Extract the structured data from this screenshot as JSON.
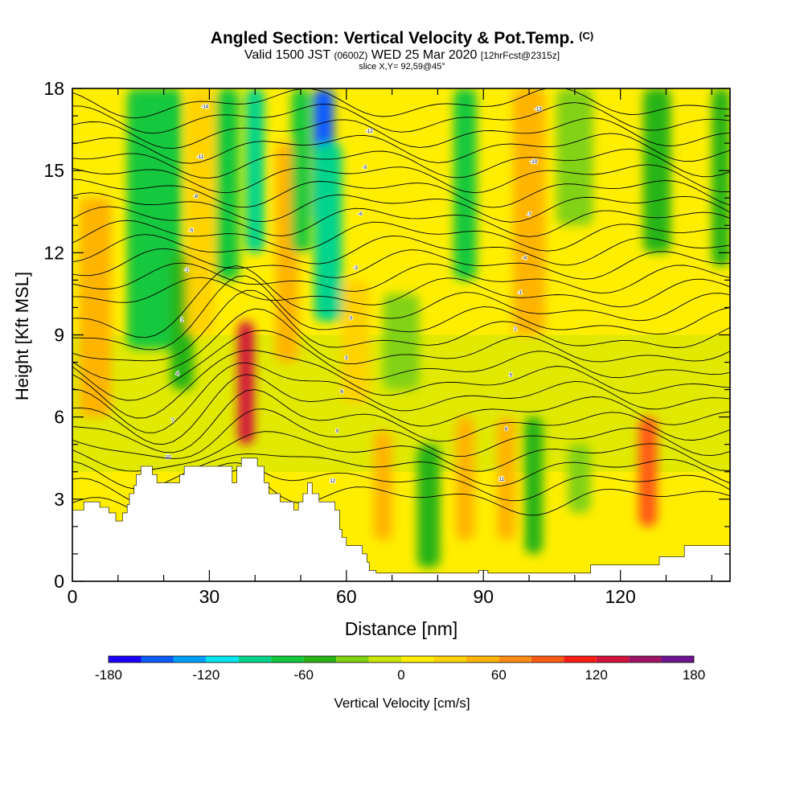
{
  "header": {
    "title": "Angled Section: Vertical Velocity & Pot.Temp.",
    "title_unit": "(C)",
    "valid_prefix": "Valid 1500 JST",
    "valid_utc": "(0600Z)",
    "valid_date": "WED 25 Mar 2020",
    "forecast": "[12hrFcst@2315z]",
    "slice": "slice X,Y= 92,59@45°"
  },
  "chart_data": {
    "type": "heatmap",
    "xlabel": "Distance [nm]",
    "ylabel": "Height [Kft MSL]",
    "xlim": [
      0,
      144
    ],
    "ylim": [
      0,
      18
    ],
    "x_ticks": [
      0,
      30,
      60,
      90,
      120
    ],
    "y_ticks": [
      0,
      3,
      6,
      9,
      12,
      15,
      18
    ],
    "colorbar": {
      "label": "Vertical Velocity [cm/s]",
      "min": -180,
      "max": 180,
      "ticks": [
        -180,
        -120,
        -60,
        0,
        60,
        120,
        180
      ],
      "colors": [
        "#1a00ff",
        "#0a5cff",
        "#00a0ff",
        "#00e6f0",
        "#00d48c",
        "#14c83c",
        "#28b414",
        "#82d214",
        "#c8e600",
        "#ffee00",
        "#ffd200",
        "#ffb400",
        "#ff8c14",
        "#ff5a14",
        "#ff1e14",
        "#d2143c",
        "#a01464",
        "#6e1490"
      ]
    },
    "velocity_columns": [
      {
        "x": 5,
        "w": 7,
        "v": 40,
        "y0": 6,
        "y1": 14
      },
      {
        "x": 18,
        "w": 12,
        "v": -65,
        "y0": 8.5,
        "y1": 18
      },
      {
        "x": 24,
        "w": 5,
        "v": -45,
        "y0": 7,
        "y1": 12
      },
      {
        "x": 28,
        "w": 6,
        "v": 35,
        "y0": 9,
        "y1": 18
      },
      {
        "x": 34,
        "w": 5,
        "v": -80,
        "y0": 11,
        "y1": 18
      },
      {
        "x": 38,
        "w": 3.5,
        "v": 125,
        "y0": 5,
        "y1": 9.5
      },
      {
        "x": 40,
        "w": 4,
        "v": -100,
        "y0": 12,
        "y1": 18
      },
      {
        "x": 47,
        "w": 5,
        "v": 40,
        "y0": 8,
        "y1": 16
      },
      {
        "x": 50,
        "w": 4,
        "v": -70,
        "y0": 12,
        "y1": 18
      },
      {
        "x": 55,
        "w": 4.5,
        "v": -160,
        "y0": 13,
        "y1": 18
      },
      {
        "x": 56,
        "w": 6,
        "v": -100,
        "y0": 9.5,
        "y1": 16
      },
      {
        "x": 62,
        "w": 6,
        "v": 30,
        "y0": 6.5,
        "y1": 11
      },
      {
        "x": 68,
        "w": 4,
        "v": 50,
        "y0": 1.5,
        "y1": 5.5
      },
      {
        "x": 72,
        "w": 8,
        "v": -40,
        "y0": 7,
        "y1": 10.5
      },
      {
        "x": 78,
        "w": 5,
        "v": -50,
        "y0": 0.5,
        "y1": 5
      },
      {
        "x": 86,
        "w": 5,
        "v": -70,
        "y0": 11,
        "y1": 18
      },
      {
        "x": 86,
        "w": 4,
        "v": 45,
        "y0": 1.5,
        "y1": 6
      },
      {
        "x": 95,
        "w": 4,
        "v": 55,
        "y0": 1.5,
        "y1": 6
      },
      {
        "x": 100,
        "w": 7,
        "v": 40,
        "y0": 9,
        "y1": 18
      },
      {
        "x": 101,
        "w": 4,
        "v": -45,
        "y0": 1,
        "y1": 6
      },
      {
        "x": 110,
        "w": 8,
        "v": -35,
        "y0": 13,
        "y1": 18
      },
      {
        "x": 111,
        "w": 5,
        "v": -40,
        "y0": 2.5,
        "y1": 5
      },
      {
        "x": 126,
        "w": 4,
        "v": 80,
        "y0": 2,
        "y1": 6
      },
      {
        "x": 128,
        "w": 6,
        "v": -60,
        "y0": 12,
        "y1": 18
      },
      {
        "x": 142,
        "w": 4,
        "v": -45,
        "y0": 11.5,
        "y1": 18
      }
    ],
    "terrain": [
      [
        0,
        2.6
      ],
      [
        2.5,
        2.6
      ],
      [
        2.5,
        2.9
      ],
      [
        6,
        2.9
      ],
      [
        6,
        2.7
      ],
      [
        8,
        2.7
      ],
      [
        8,
        2.5
      ],
      [
        9.5,
        2.5
      ],
      [
        9.5,
        2.2
      ],
      [
        11,
        2.2
      ],
      [
        11,
        2.5
      ],
      [
        12,
        2.5
      ],
      [
        12,
        2.8
      ],
      [
        12.5,
        2.8
      ],
      [
        12.5,
        3.2
      ],
      [
        13.5,
        3.2
      ],
      [
        13.5,
        3.5
      ],
      [
        14,
        3.5
      ],
      [
        14,
        3.9
      ],
      [
        15,
        3.9
      ],
      [
        15,
        4.2
      ],
      [
        17.5,
        4.2
      ],
      [
        17.5,
        3.9
      ],
      [
        18.5,
        3.9
      ],
      [
        18.5,
        3.6
      ],
      [
        23.5,
        3.6
      ],
      [
        23.5,
        3.9
      ],
      [
        24.5,
        3.9
      ],
      [
        24.5,
        4.2
      ],
      [
        35,
        4.2
      ],
      [
        35,
        3.6
      ],
      [
        36,
        3.6
      ],
      [
        36,
        4.2
      ],
      [
        37,
        4.2
      ],
      [
        37,
        4.5
      ],
      [
        40.5,
        4.5
      ],
      [
        40.5,
        4.2
      ],
      [
        42,
        4.2
      ],
      [
        42,
        3.6
      ],
      [
        43,
        3.6
      ],
      [
        43,
        3.2
      ],
      [
        45.5,
        3.2
      ],
      [
        45.5,
        2.9
      ],
      [
        48.5,
        2.9
      ],
      [
        48.5,
        2.6
      ],
      [
        49.5,
        2.6
      ],
      [
        49.5,
        2.9
      ],
      [
        50.5,
        2.9
      ],
      [
        50.5,
        3.2
      ],
      [
        51.5,
        3.2
      ],
      [
        51.5,
        3.6
      ],
      [
        52.5,
        3.6
      ],
      [
        52.5,
        3.2
      ],
      [
        54,
        3.2
      ],
      [
        54,
        2.9
      ],
      [
        57.5,
        2.9
      ],
      [
        57.5,
        2.6
      ],
      [
        58.5,
        2.6
      ],
      [
        58.5,
        1.9
      ],
      [
        59,
        1.9
      ],
      [
        59,
        1.6
      ],
      [
        60,
        1.6
      ],
      [
        60,
        1.3
      ],
      [
        63.5,
        1.3
      ],
      [
        63.5,
        1.0
      ],
      [
        64.5,
        1.0
      ],
      [
        64.5,
        0.7
      ],
      [
        65,
        0.7
      ],
      [
        65,
        0.4
      ],
      [
        66.5,
        0.4
      ],
      [
        66.5,
        0.3
      ],
      [
        89,
        0.3
      ],
      [
        89,
        0.4
      ],
      [
        91,
        0.4
      ],
      [
        91,
        0.3
      ],
      [
        113.5,
        0.3
      ],
      [
        113.5,
        0.6
      ],
      [
        128.5,
        0.6
      ],
      [
        128.5,
        0.9
      ],
      [
        134,
        0.9
      ],
      [
        134,
        1.3
      ],
      [
        144,
        1.3
      ],
      [
        144,
        0
      ],
      [
        0,
        0
      ]
    ],
    "isentrope_labels": [
      "14",
      "12",
      "11",
      "10",
      "9",
      "8",
      "7",
      "6",
      "5",
      "4",
      "3",
      "2",
      "1",
      "0",
      "-1",
      "-2",
      "-3",
      "-4",
      "-5",
      "-6",
      "-7",
      "-8",
      "-9",
      "-10",
      "-11",
      "-12",
      "-13",
      "-14"
    ]
  }
}
